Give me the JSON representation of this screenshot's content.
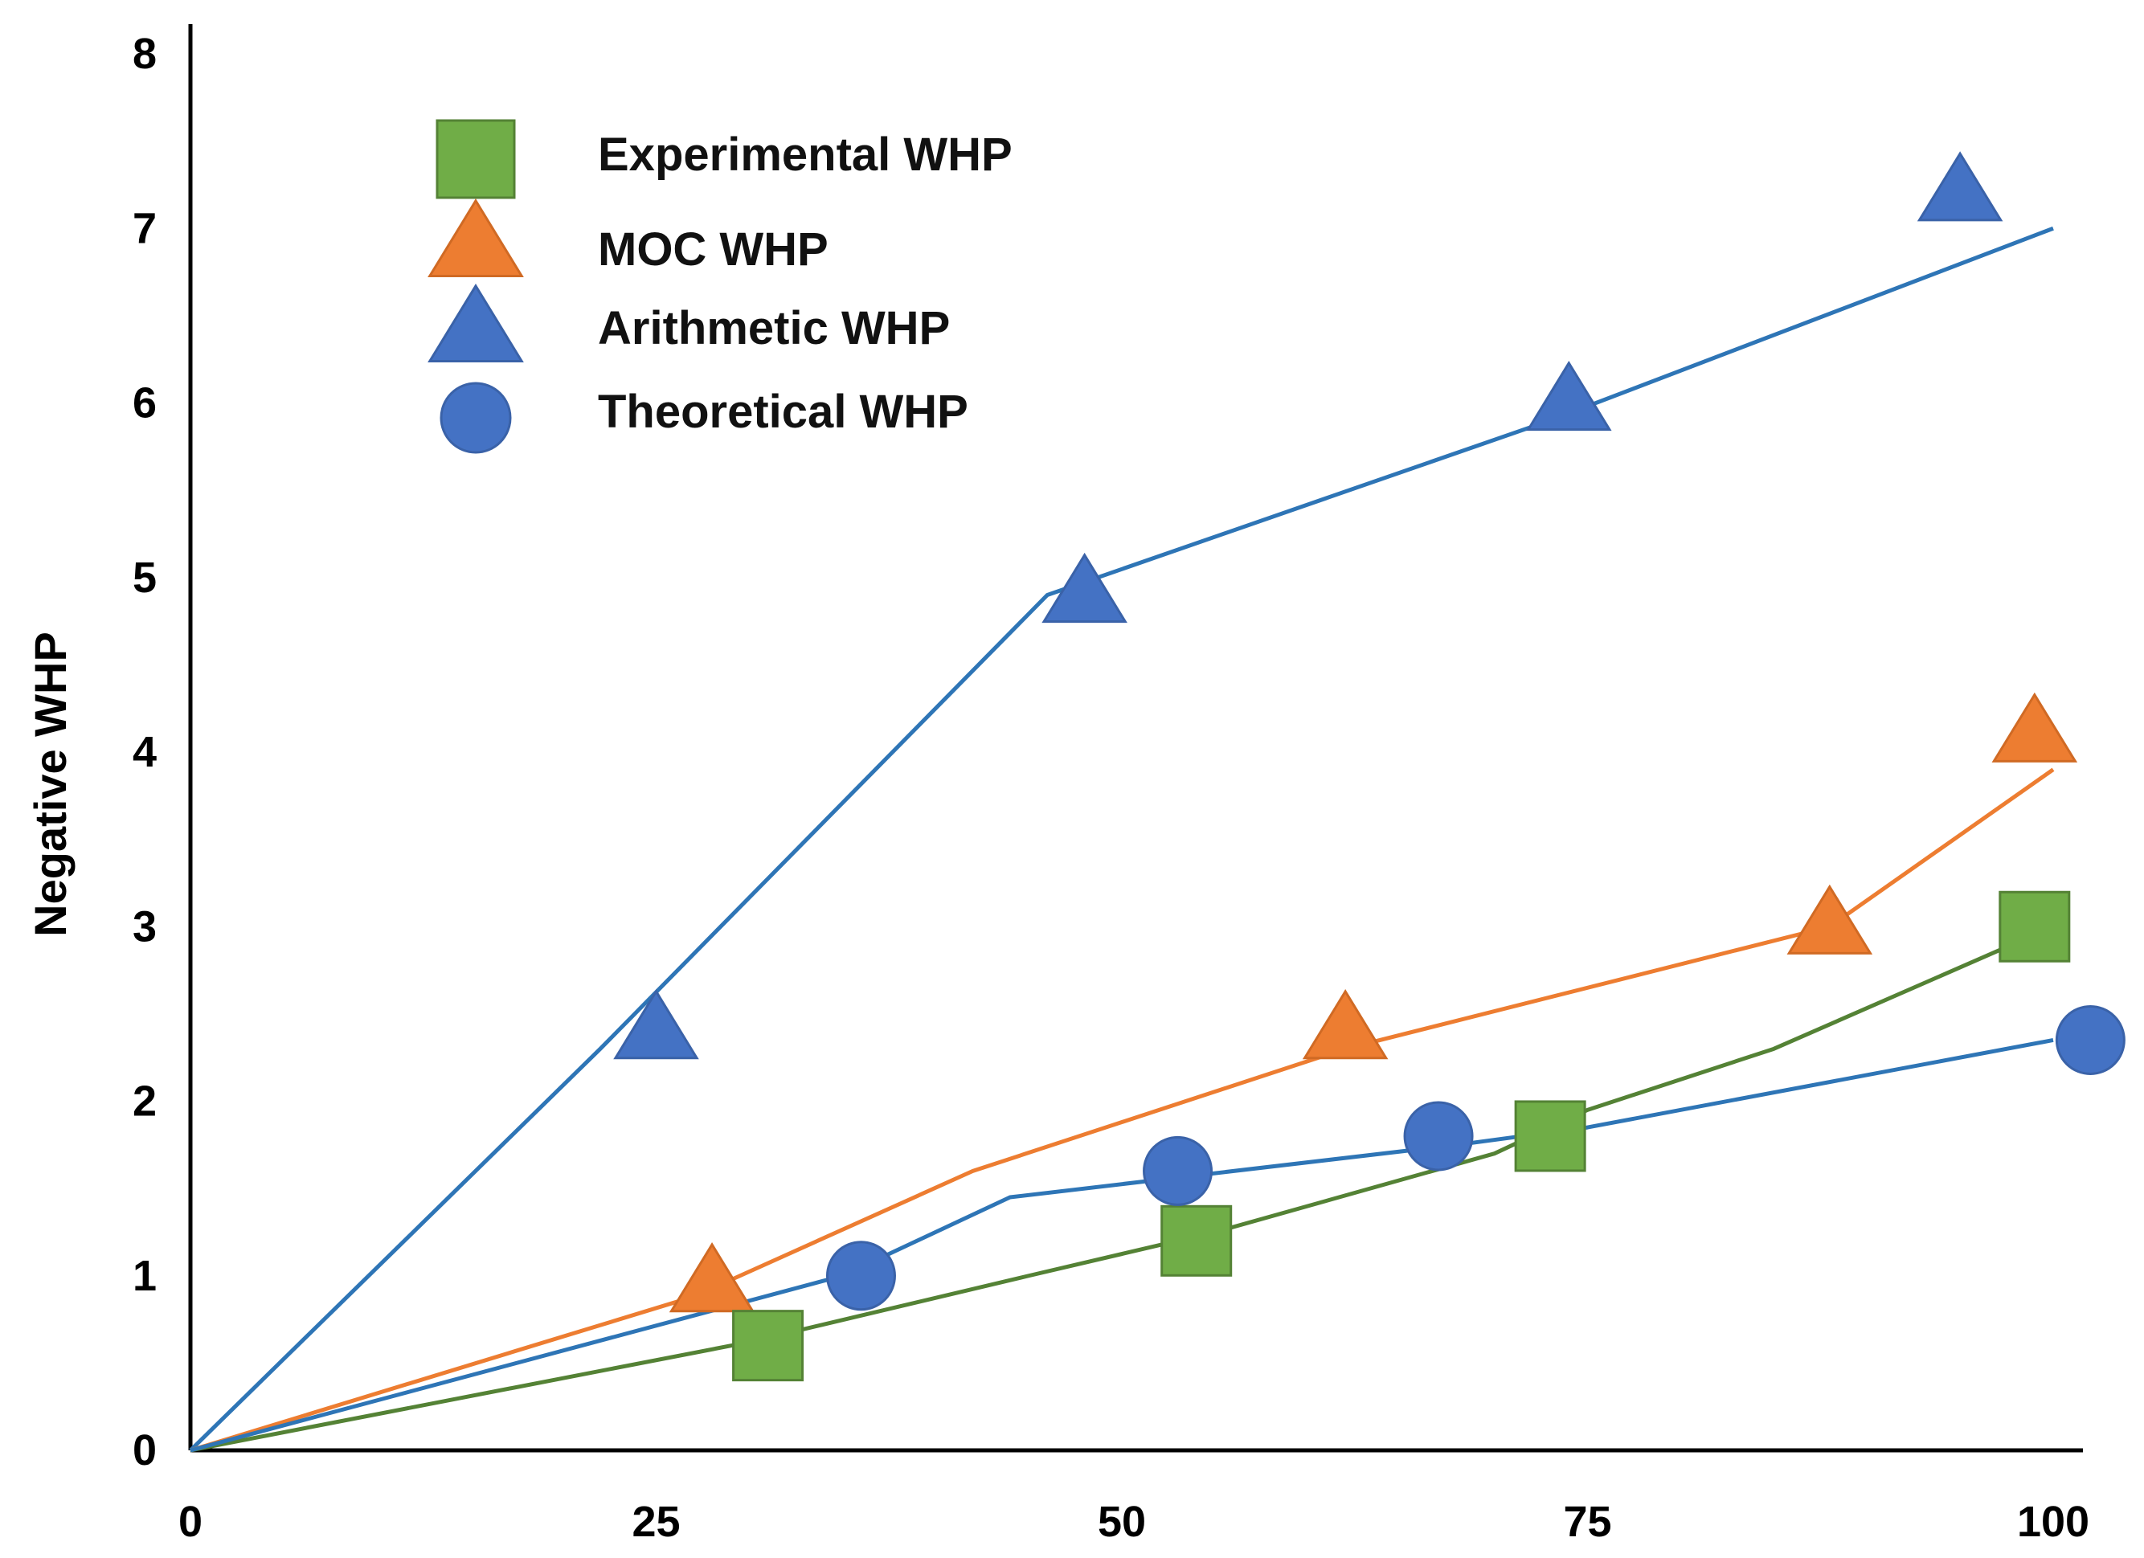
{
  "chart_data": {
    "type": "line",
    "title": "",
    "xlabel": "",
    "ylabel": "Negative WHP",
    "xlim": [
      0,
      100
    ],
    "ylim": [
      0,
      8
    ],
    "x_ticks": [
      0,
      25,
      50,
      75,
      100
    ],
    "y_ticks": [
      0,
      1,
      2,
      3,
      4,
      5,
      6,
      7,
      8
    ],
    "grid": false,
    "legend_position": "top-left",
    "series": [
      {
        "name": "Arithmetic WHP",
        "marker": "triangle",
        "color": "#4472C4",
        "line_color": "#2E75B6",
        "line_x": [
          0,
          22,
          46,
          73,
          100
        ],
        "line_y": [
          0,
          2.3,
          4.9,
          5.9,
          7.0
        ],
        "points_x": [
          25,
          48,
          74,
          95
        ],
        "points_y": [
          2.4,
          4.9,
          6.0,
          7.2
        ]
      },
      {
        "name": "MOC WHP",
        "marker": "triangle",
        "color": "#ED7D31",
        "line_color": "#ED7D31",
        "line_x": [
          0,
          27,
          42,
          62,
          88,
          100
        ],
        "line_y": [
          0,
          0.88,
          1.6,
          2.3,
          3.0,
          3.9
        ],
        "points_x": [
          28,
          62,
          88,
          99
        ],
        "points_y": [
          0.95,
          2.4,
          3.0,
          4.1
        ]
      },
      {
        "name": "Experimental WHP",
        "marker": "square",
        "color": "#70AD47",
        "line_color": "#548235",
        "line_x": [
          0,
          30,
          45,
          55,
          70,
          75,
          85,
          100
        ],
        "line_y": [
          0,
          0.62,
          1.0,
          1.25,
          1.7,
          1.95,
          2.3,
          3.0
        ],
        "points_x": [
          31,
          54,
          73,
          99
        ],
        "points_y": [
          0.6,
          1.2,
          1.8,
          3.0
        ]
      },
      {
        "name": "Theoretical WHP",
        "marker": "circle",
        "color": "#4472C4",
        "line_color": "#2E75B6",
        "line_x": [
          0,
          35,
          44,
          52,
          68,
          75,
          100
        ],
        "line_y": [
          0,
          1.0,
          1.45,
          1.55,
          1.75,
          1.85,
          2.35
        ],
        "points_x": [
          36,
          53,
          67,
          102
        ],
        "points_y": [
          1.0,
          1.6,
          1.8,
          2.35
        ]
      }
    ],
    "legend_order": [
      "Experimental WHP",
      "MOC WHP",
      "Arithmetic WHP",
      "Theoretical WHP"
    ]
  }
}
